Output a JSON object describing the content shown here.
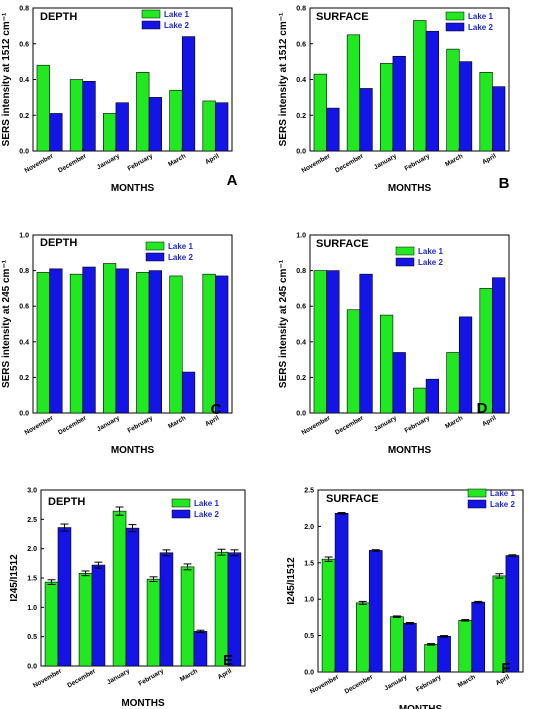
{
  "colors": {
    "lake1": "#22e822",
    "lake2": "#1414e6",
    "axis": "#000000"
  },
  "chart_data": [
    {
      "type": "bar",
      "panel": "A",
      "title": "DEPTH",
      "categories": [
        "November",
        "December",
        "January",
        "February",
        "March",
        "April"
      ],
      "series": [
        {
          "name": "Lake 1",
          "values": [
            0.48,
            0.4,
            0.21,
            0.44,
            0.34,
            0.28
          ]
        },
        {
          "name": "Lake 2",
          "values": [
            0.21,
            0.39,
            0.27,
            0.3,
            0.64,
            0.27
          ]
        }
      ],
      "ylim": [
        0,
        0.8
      ],
      "yticks": [
        "0.0",
        "0.2",
        "0.4",
        "0.6",
        "0.8"
      ],
      "ylabel": "SERS intensity at 1512 cm⁻¹",
      "xlabel": "MONTHS",
      "legend": "top-center"
    },
    {
      "type": "bar",
      "panel": "B",
      "title": "SURFACE",
      "categories": [
        "November",
        "December",
        "January",
        "February",
        "March",
        "April"
      ],
      "series": [
        {
          "name": "Lake 1",
          "values": [
            0.43,
            0.65,
            0.49,
            0.73,
            0.57,
            0.44
          ]
        },
        {
          "name": "Lake 2",
          "values": [
            0.24,
            0.35,
            0.53,
            0.67,
            0.5,
            0.36
          ]
        }
      ],
      "ylim": [
        0,
        0.8
      ],
      "yticks": [
        "0.0",
        "0.2",
        "0.4",
        "0.6",
        "0.8"
      ],
      "ylabel": "SERS intensity at 1512 cm⁻¹",
      "xlabel": "MONTHS",
      "legend": "top-center"
    },
    {
      "type": "bar",
      "panel": "C",
      "title": "DEPTH",
      "categories": [
        "November",
        "December",
        "January",
        "February",
        "March",
        "April"
      ],
      "series": [
        {
          "name": "Lake 1",
          "values": [
            0.79,
            0.78,
            0.84,
            0.79,
            0.77,
            0.78
          ]
        },
        {
          "name": "Lake 2",
          "values": [
            0.81,
            0.82,
            0.81,
            0.8,
            0.23,
            0.77
          ]
        }
      ],
      "ylim": [
        0,
        1.0
      ],
      "yticks": [
        "0.0",
        "0.2",
        "0.4",
        "0.6",
        "0.8",
        "1.0"
      ],
      "ylabel": "SERS intensity at 245 cm⁻¹",
      "xlabel": "MONTHS",
      "legend": "top-center"
    },
    {
      "type": "bar",
      "panel": "D",
      "title": "SURFACE",
      "categories": [
        "November",
        "December",
        "January",
        "February",
        "March",
        "April"
      ],
      "series": [
        {
          "name": "Lake 1",
          "values": [
            0.8,
            0.58,
            0.55,
            0.14,
            0.34,
            0.7
          ]
        },
        {
          "name": "Lake 2",
          "values": [
            0.8,
            0.78,
            0.34,
            0.19,
            0.54,
            0.76
          ]
        }
      ],
      "ylim": [
        0,
        1.0
      ],
      "yticks": [
        "0.0",
        "0.2",
        "0.4",
        "0.6",
        "0.8",
        "1.0"
      ],
      "ylabel": "SERS intensity at 245 cm⁻¹",
      "xlabel": "MONTHS",
      "legend": "top-right"
    },
    {
      "type": "bar",
      "panel": "E",
      "title": "DEPTH",
      "categories": [
        "November",
        "December",
        "January",
        "February",
        "March",
        "April"
      ],
      "series": [
        {
          "name": "Lake 1",
          "values": [
            1.43,
            1.58,
            2.64,
            1.48,
            1.69,
            1.94
          ],
          "errors": [
            0.04,
            0.04,
            0.07,
            0.04,
            0.05,
            0.05
          ]
        },
        {
          "name": "Lake 2",
          "values": [
            2.36,
            1.72,
            2.35,
            1.93,
            0.59,
            1.93
          ],
          "errors": [
            0.06,
            0.05,
            0.06,
            0.05,
            0.02,
            0.05
          ]
        }
      ],
      "ylim": [
        0,
        3.0
      ],
      "yticks": [
        "0.0",
        "0.5",
        "1.0",
        "1.5",
        "2.0",
        "2.5",
        "3.0"
      ],
      "ylabel": "I245/I1512",
      "xlabel": "MONTHS",
      "legend": "top-right"
    },
    {
      "type": "bar",
      "panel": "F",
      "title": "SURFACE",
      "categories": [
        "November",
        "December",
        "January",
        "February",
        "March",
        "April"
      ],
      "series": [
        {
          "name": "Lake 1",
          "values": [
            1.55,
            0.95,
            0.76,
            0.38,
            0.71,
            1.32
          ],
          "errors": [
            0.03,
            0.02,
            0.01,
            0.01,
            0.01,
            0.03
          ]
        },
        {
          "name": "Lake 2",
          "values": [
            2.18,
            1.67,
            0.67,
            0.49,
            0.96,
            1.6
          ],
          "errors": [
            0.01,
            0.01,
            0.01,
            0.01,
            0.01,
            0.01
          ]
        }
      ],
      "ylim": [
        0,
        2.5
      ],
      "yticks": [
        "0.0",
        "0.5",
        "1.0",
        "1.5",
        "2.0",
        "2.5"
      ],
      "ylabel": "I245/I1512",
      "xlabel": "MONTHS",
      "legend": "top-right"
    }
  ]
}
